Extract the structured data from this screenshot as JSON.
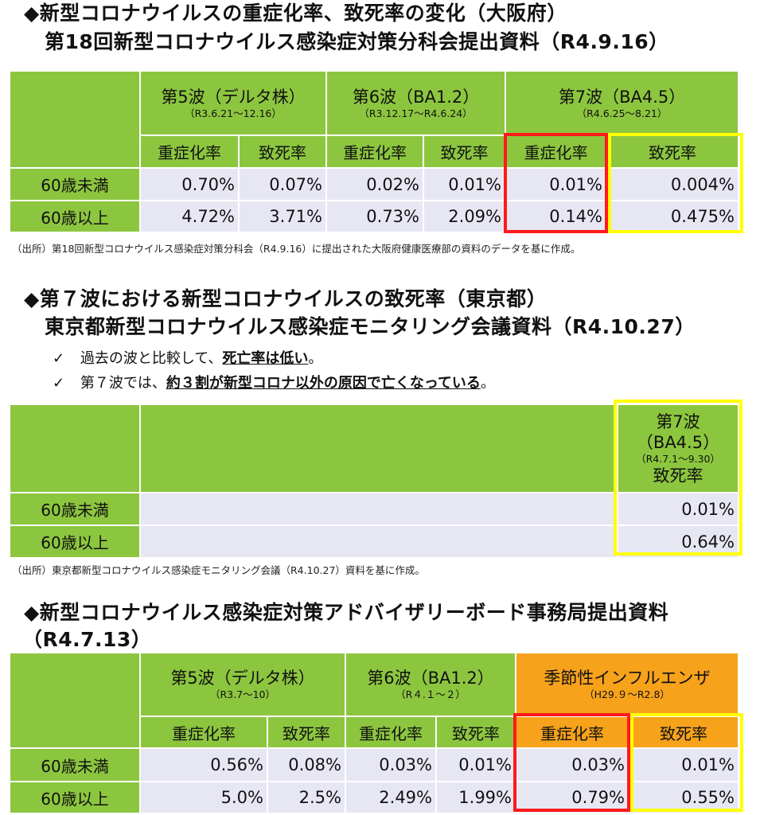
{
  "section1": {
    "title_line1": "◆新型コロナウイルスの重症化率、致死率の変化（大阪府）",
    "title_line2": "第18回新型コロナウイルス感染症対策分科会提出資料（R4.9.16）",
    "columns": [
      {
        "name": "第5波（デルタ株）",
        "period": "（R3.6.21～12.16）"
      },
      {
        "name": "第6波（BA1.2）",
        "period": "（R3.12.17～R4.6.24）"
      },
      {
        "name": "第7波（BA4.5）",
        "period": "（R4.6.25～8.21）"
      }
    ],
    "sub_labels": [
      "重症化率",
      "致死率",
      "重症化率",
      "致死率",
      "重症化率",
      "致死率"
    ],
    "rows": [
      {
        "label": "60歳未満",
        "values": [
          "0.70%",
          "0.07%",
          "0.02%",
          "0.01%",
          "0.01%",
          "0.004%"
        ]
      },
      {
        "label": "60歳以上",
        "values": [
          "4.72%",
          "3.71%",
          "0.73%",
          "2.09%",
          "0.14%",
          "0.475%"
        ]
      }
    ],
    "source": "（出所）第18回新型コロナウイルス感染症対策分科会（R4.9.16）に提出された大阪府健康医療部の資料のデータを基に作成。"
  },
  "section2": {
    "title_line1": "◆第７波における新型コロナウイルスの致死率（東京都）",
    "title_line2": "東京都新型コロナウイルス感染症モニタリング会議資料（R4.10.27）",
    "bullets": [
      {
        "check": "✓",
        "pre": "過去の波と比較して、",
        "emph": "死亡率は低い",
        "post": "。"
      },
      {
        "check": "✓",
        "pre": "第７波では、",
        "emph": "約３割が新型コロナ以外の原因で亡くなっている",
        "post": "。"
      }
    ],
    "column": {
      "line1": "第7波",
      "line2": "（BA4.5）",
      "period": "（R4.7.1～9.30）",
      "sub": "致死率"
    },
    "rows": [
      {
        "label": "60歳未満",
        "value": "0.01%"
      },
      {
        "label": "60歳以上",
        "value": "0.64%"
      }
    ],
    "source": "（出所）東京都新型コロナウイルス感染症モニタリング会議（R4.10.27）資料を基に作成。"
  },
  "section3": {
    "title_line1": "◆新型コロナウイルス感染症対策アドバイザリーボード事務局提出資料",
    "title_line2": "（R4.7.13）",
    "columns": [
      {
        "name": "第5波（デルタ株）",
        "period": "（R3.7～10）"
      },
      {
        "name": "第6波（BA1.2）",
        "period": "（R４.１～２）"
      },
      {
        "name": "季節性インフルエンザ",
        "period": "（H29.９～R2.8）"
      }
    ],
    "sub_labels": [
      "重症化率",
      "致死率",
      "重症化率",
      "致死率",
      "重症化率",
      "致死率"
    ],
    "rows": [
      {
        "label": "60歳未満",
        "values": [
          "0.56%",
          "0.08%",
          "0.03%",
          "0.01%",
          "0.03%",
          "0.01%"
        ]
      },
      {
        "label": "60歳以上",
        "values": [
          "5.0%",
          "2.5%",
          "2.49%",
          "1.99%",
          "0.79%",
          "0.55%"
        ]
      }
    ]
  },
  "colors": {
    "green": "#8cc63f",
    "lavender": "#e7e7f4",
    "orange": "#f7a21b",
    "red_box": "#ff1a1a",
    "yellow_box": "#ffff00"
  }
}
